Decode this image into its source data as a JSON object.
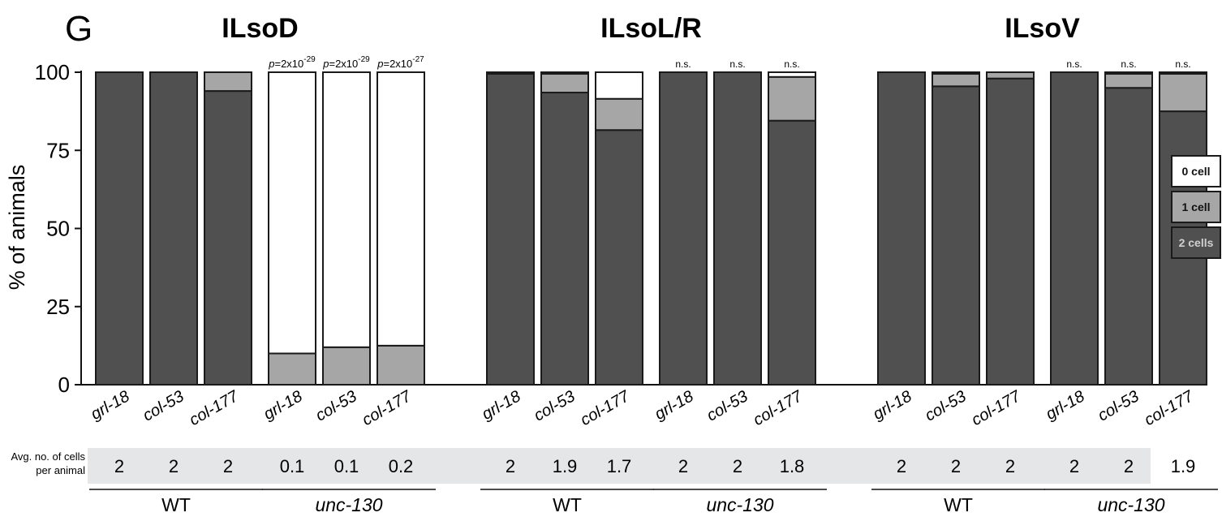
{
  "chart_data": {
    "type": "bar",
    "stacked": true,
    "panel_label": "G",
    "ylabel": "% of animals",
    "ylim": [
      0,
      100
    ],
    "yticks": [
      0,
      25,
      50,
      75,
      100
    ],
    "colors": {
      "2 cells": "#505050",
      "1 cell": "#a6a6a6",
      "0 cell": "#ffffff",
      "edge": "#1a1a1a"
    },
    "legend": {
      "position": "right",
      "entries": [
        "0 cell",
        "1 cell",
        "2 cells"
      ]
    },
    "avg_label": "Avg. no. of cells per animal",
    "groups": [
      {
        "title": "ILsoD",
        "bars": [
          {
            "category": "grl-18",
            "genotype": "WT",
            "two": 100,
            "one": 0,
            "zero": 0,
            "avg": "2",
            "annotation": ""
          },
          {
            "category": "col-53",
            "genotype": "WT",
            "two": 100,
            "one": 0,
            "zero": 0,
            "avg": "2",
            "annotation": ""
          },
          {
            "category": "col-177",
            "genotype": "WT",
            "two": 94,
            "one": 6,
            "zero": 0,
            "avg": "2",
            "annotation": ""
          },
          {
            "category": "grl-18",
            "genotype": "unc-130",
            "two": 0,
            "one": 10,
            "zero": 90,
            "avg": "0.1",
            "annotation": "p=2x10-29"
          },
          {
            "category": "col-53",
            "genotype": "unc-130",
            "two": 0,
            "one": 12,
            "zero": 88,
            "avg": "0.1",
            "annotation": "p=2x10-29"
          },
          {
            "category": "col-177",
            "genotype": "unc-130",
            "two": 0,
            "one": 12.5,
            "zero": 87.5,
            "avg": "0.2",
            "annotation": "p=2x10-27"
          }
        ]
      },
      {
        "title": "ILsoL/R",
        "bars": [
          {
            "category": "grl-18",
            "genotype": "WT",
            "two": 99.5,
            "one": 0,
            "zero": 0.5,
            "avg": "2",
            "annotation": ""
          },
          {
            "category": "col-53",
            "genotype": "WT",
            "two": 93.5,
            "one": 6,
            "zero": 0.5,
            "avg": "1.9",
            "annotation": ""
          },
          {
            "category": "col-177",
            "genotype": "WT",
            "two": 81.5,
            "one": 10,
            "zero": 8.5,
            "avg": "1.7",
            "annotation": ""
          },
          {
            "category": "grl-18",
            "genotype": "unc-130",
            "two": 100,
            "one": 0,
            "zero": 0,
            "avg": "2",
            "annotation": "n.s."
          },
          {
            "category": "col-53",
            "genotype": "unc-130",
            "two": 100,
            "one": 0,
            "zero": 0,
            "avg": "2",
            "annotation": "n.s."
          },
          {
            "category": "col-177",
            "genotype": "unc-130",
            "two": 84.5,
            "one": 14,
            "zero": 1.5,
            "avg": "1.8",
            "annotation": "n.s."
          }
        ]
      },
      {
        "title": "ILsoV",
        "bars": [
          {
            "category": "grl-18",
            "genotype": "WT",
            "two": 100,
            "one": 0,
            "zero": 0,
            "avg": "2",
            "annotation": ""
          },
          {
            "category": "col-53",
            "genotype": "WT",
            "two": 95.5,
            "one": 4,
            "zero": 0.5,
            "avg": "2",
            "annotation": ""
          },
          {
            "category": "col-177",
            "genotype": "WT",
            "two": 98,
            "one": 2,
            "zero": 0,
            "avg": "2",
            "annotation": ""
          },
          {
            "category": "grl-18",
            "genotype": "unc-130",
            "two": 100,
            "one": 0,
            "zero": 0,
            "avg": "2",
            "annotation": "n.s."
          },
          {
            "category": "col-53",
            "genotype": "unc-130",
            "two": 95,
            "one": 4.5,
            "zero": 0.5,
            "avg": "2",
            "annotation": "n.s."
          },
          {
            "category": "col-177",
            "genotype": "unc-130",
            "two": 87.5,
            "one": 12,
            "zero": 0.5,
            "avg": "1.9",
            "annotation": "n.s."
          }
        ]
      }
    ]
  }
}
